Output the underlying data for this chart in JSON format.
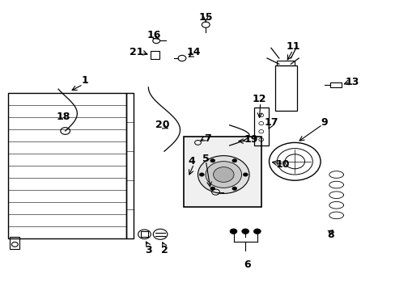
{
  "title": "",
  "bg_color": "#ffffff",
  "fig_width": 4.89,
  "fig_height": 3.6,
  "dpi": 100,
  "font_size": 9,
  "line_color": "#000000",
  "light_gray": "#d8d8d8"
}
